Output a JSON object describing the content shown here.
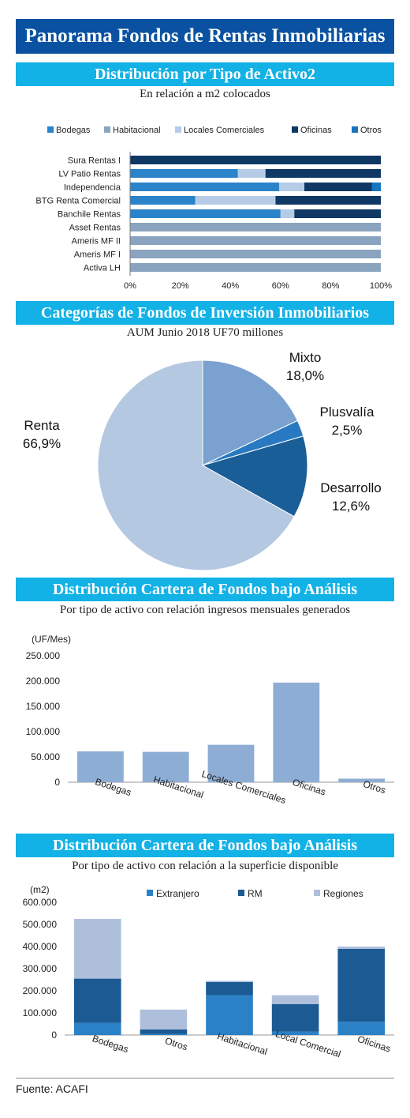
{
  "title": "Panorama Fondos de Rentas Inmobiliarias",
  "footer": "Fuente: ACAFI",
  "colors": {
    "bodegas": "#2b83c9",
    "habitacional": "#8aa4bf",
    "locales": "#b6cce6",
    "oficinas": "#0f3865",
    "otros": "#1774bf",
    "bars2": "#8eadd4",
    "extranjero": "#2a81c6",
    "rm": "#1b5a92",
    "regiones": "#aebfdb"
  },
  "sections": [
    {
      "title": "Distribución por Tipo de Activo2",
      "subtitle": "En relación a m2 colocados"
    },
    {
      "title": "Categorías de Fondos de Inversión Inmobiliarios",
      "subtitle": "AUM Junio 2018 UF70 millones"
    },
    {
      "title": "Distribución Cartera de Fondos bajo Análisis",
      "subtitle": "Por tipo de activo con relación ingresos mensuales generados"
    },
    {
      "title": "Distribución Cartera de Fondos bajo Análisis",
      "subtitle": "Por tipo de activo con relación a la superficie disponible"
    }
  ],
  "chart_data": [
    {
      "type": "bar",
      "orientation": "horizontal",
      "stacked": "percent",
      "categories": [
        "Sura Rentas I",
        "LV Patio Rentas",
        "Independencia",
        "BTG Renta Comercial",
        "Banchile Rentas",
        "Asset Rentas",
        "Ameris MF II",
        "Ameris MF I",
        "Activa LH"
      ],
      "series": [
        {
          "name": "Bodegas",
          "values": [
            0,
            43,
            59.5,
            26,
            60,
            0,
            0,
            0,
            0
          ]
        },
        {
          "name": "Habitacional",
          "values": [
            0,
            0,
            0,
            0,
            0,
            100,
            100,
            100,
            100
          ]
        },
        {
          "name": "Locales Comerciales",
          "values": [
            0,
            11,
            10,
            32,
            5.5,
            0,
            0,
            0,
            0
          ]
        },
        {
          "name": "Oficinas",
          "values": [
            100,
            46,
            27,
            42,
            34.5,
            0,
            0,
            0,
            0
          ]
        },
        {
          "name": "Otros",
          "values": [
            0,
            0,
            3.5,
            0,
            0,
            0,
            0,
            0,
            0
          ]
        }
      ],
      "xticks": [
        "0%",
        "20%",
        "40%",
        "60%",
        "80%",
        "100%"
      ],
      "xlim": [
        0,
        100
      ],
      "legend": "top"
    },
    {
      "type": "pie",
      "labels": [
        "Mixto",
        "Plusvalía",
        "Desarrollo",
        "Renta"
      ],
      "values": [
        18.0,
        2.5,
        12.6,
        66.9
      ],
      "value_labels": [
        "18,0%",
        "2,5%",
        "12,6%",
        "66,9%"
      ],
      "colors": [
        "#7aa1cf",
        "#2879c1",
        "#1a5e98",
        "#b5c8e2"
      ]
    },
    {
      "type": "bar",
      "categories": [
        "Bodegas",
        "Habitacional",
        "Locales Comerciales",
        "Oficinas",
        "Otros"
      ],
      "values": [
        61000,
        60000,
        74000,
        197000,
        7000
      ],
      "ylabel": "(UF/Mes)",
      "ylim": [
        0,
        250000
      ],
      "yticks": [
        "0",
        "50.000",
        "100.000",
        "150.000",
        "200.000",
        "250.000"
      ]
    },
    {
      "type": "bar",
      "stacked": true,
      "categories": [
        "Bodegas",
        "Otros",
        "Habitacional",
        "Local Comercial",
        "Oficinas"
      ],
      "series": [
        {
          "name": "Extranjero",
          "values": [
            55000,
            5000,
            180000,
            15000,
            60000
          ]
        },
        {
          "name": "RM",
          "values": [
            200000,
            20000,
            60000,
            125000,
            330000
          ]
        },
        {
          "name": "Regiones",
          "values": [
            270000,
            90000,
            5000,
            40000,
            10000
          ]
        }
      ],
      "ylabel": "(m2)",
      "ylim": [
        0,
        600000
      ],
      "yticks": [
        "0",
        "100.000",
        "200.000",
        "300.000",
        "400.000",
        "500.000",
        "600.000"
      ],
      "legend": "top"
    }
  ]
}
